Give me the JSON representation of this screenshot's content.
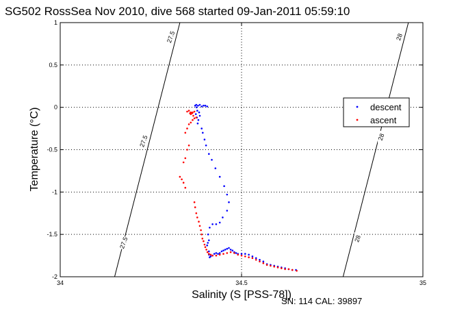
{
  "chart_data": {
    "type": "scatter",
    "title": "SG502 RossSea Nov 2010, dive 568 started 09-Jan-2011 05:59:10",
    "xlabel": "Salinity (S [PSS-78])",
    "ylabel": "Temperature (°C)",
    "xlim": [
      34,
      35
    ],
    "ylim": [
      -2,
      1
    ],
    "x_ticks": [
      "34",
      "34.5",
      "35"
    ],
    "y_ticks": [
      "-2",
      "-1.5",
      "-1",
      "-0.5",
      "0",
      "0.5",
      "1"
    ],
    "grid": "dotted at major ticks",
    "legend": {
      "placement": "right",
      "entries": [
        "descent",
        "ascent"
      ]
    },
    "series": [
      {
        "name": "descent",
        "color": "#0000ff",
        "points": [
          [
            34.372,
            0.02
          ],
          [
            34.375,
            0.03
          ],
          [
            34.38,
            0.02
          ],
          [
            34.385,
            0.03
          ],
          [
            34.39,
            0.01
          ],
          [
            34.395,
            0.02
          ],
          [
            34.4,
            0.02
          ],
          [
            34.405,
            0.01
          ],
          [
            34.376,
            0.0
          ],
          [
            34.378,
            -0.04
          ],
          [
            34.374,
            -0.08
          ],
          [
            34.377,
            -0.12
          ],
          [
            34.381,
            -0.15
          ],
          [
            34.379,
            -0.19
          ],
          [
            34.383,
            -0.06
          ],
          [
            34.385,
            -0.1
          ],
          [
            34.39,
            -0.25
          ],
          [
            34.393,
            -0.3
          ],
          [
            34.398,
            -0.38
          ],
          [
            34.402,
            -0.45
          ],
          [
            34.41,
            -0.55
          ],
          [
            34.418,
            -0.62
          ],
          [
            34.428,
            -0.72
          ],
          [
            34.44,
            -0.82
          ],
          [
            34.452,
            -0.93
          ],
          [
            34.46,
            -1.03
          ],
          [
            34.465,
            -1.12
          ],
          [
            34.46,
            -1.22
          ],
          [
            34.448,
            -1.3
          ],
          [
            34.44,
            -1.36
          ],
          [
            34.43,
            -1.38
          ],
          [
            34.42,
            -1.38
          ],
          [
            34.412,
            -1.42
          ],
          [
            34.408,
            -1.5
          ],
          [
            34.41,
            -1.57
          ],
          [
            34.407,
            -1.6
          ],
          [
            34.405,
            -1.63
          ],
          [
            34.41,
            -1.7
          ],
          [
            34.41,
            -1.74
          ],
          [
            34.412,
            -1.77
          ],
          [
            34.415,
            -1.76
          ],
          [
            34.42,
            -1.75
          ],
          [
            34.425,
            -1.73
          ],
          [
            34.43,
            -1.72
          ],
          [
            34.435,
            -1.73
          ],
          [
            34.44,
            -1.72
          ],
          [
            34.445,
            -1.7
          ],
          [
            34.45,
            -1.69
          ],
          [
            34.455,
            -1.68
          ],
          [
            34.46,
            -1.67
          ],
          [
            34.465,
            -1.66
          ],
          [
            34.47,
            -1.68
          ],
          [
            34.475,
            -1.69
          ],
          [
            34.48,
            -1.71
          ],
          [
            34.485,
            -1.72
          ],
          [
            34.49,
            -1.73
          ],
          [
            34.5,
            -1.73
          ],
          [
            34.51,
            -1.73
          ],
          [
            34.52,
            -1.74
          ],
          [
            34.53,
            -1.76
          ],
          [
            34.54,
            -1.78
          ],
          [
            34.55,
            -1.8
          ],
          [
            34.56,
            -1.82
          ],
          [
            34.57,
            -1.85
          ],
          [
            34.58,
            -1.86
          ],
          [
            34.59,
            -1.87
          ],
          [
            34.6,
            -1.88
          ],
          [
            34.61,
            -1.89
          ],
          [
            34.62,
            -1.9
          ],
          [
            34.63,
            -1.91
          ],
          [
            34.64,
            -1.92
          ],
          [
            34.65,
            -1.92
          ]
        ]
      },
      {
        "name": "ascent",
        "color": "#ff0000",
        "points": [
          [
            34.33,
            -0.82
          ],
          [
            34.335,
            -0.85
          ],
          [
            34.34,
            -0.89
          ],
          [
            34.345,
            -0.95
          ],
          [
            34.34,
            -0.65
          ],
          [
            34.345,
            -0.6
          ],
          [
            34.35,
            -0.5
          ],
          [
            34.355,
            -0.45
          ],
          [
            34.345,
            -0.3
          ],
          [
            34.35,
            -0.25
          ],
          [
            34.355,
            -0.2
          ],
          [
            34.36,
            -0.18
          ],
          [
            34.365,
            -0.15
          ],
          [
            34.37,
            -0.13
          ],
          [
            34.375,
            -0.12
          ],
          [
            34.36,
            -0.08
          ],
          [
            34.365,
            -0.06
          ],
          [
            34.37,
            -0.05
          ],
          [
            34.367,
            -0.1
          ],
          [
            34.35,
            -0.05
          ],
          [
            34.355,
            -0.04
          ],
          [
            34.36,
            -0.06
          ],
          [
            34.364,
            -0.07
          ],
          [
            34.358,
            -0.07
          ],
          [
            34.37,
            -1.12
          ],
          [
            34.372,
            -1.18
          ],
          [
            34.375,
            -1.25
          ],
          [
            34.378,
            -1.3
          ],
          [
            34.382,
            -1.35
          ],
          [
            34.385,
            -1.4
          ],
          [
            34.388,
            -1.45
          ],
          [
            34.39,
            -1.5
          ],
          [
            34.392,
            -1.55
          ],
          [
            34.395,
            -1.58
          ],
          [
            34.398,
            -1.62
          ],
          [
            34.4,
            -1.65
          ],
          [
            34.403,
            -1.68
          ],
          [
            34.406,
            -1.71
          ],
          [
            34.41,
            -1.73
          ],
          [
            34.415,
            -1.74
          ],
          [
            34.42,
            -1.75
          ],
          [
            34.43,
            -1.75
          ],
          [
            34.44,
            -1.74
          ],
          [
            34.45,
            -1.73
          ],
          [
            34.46,
            -1.72
          ],
          [
            34.47,
            -1.71
          ],
          [
            34.48,
            -1.72
          ],
          [
            34.49,
            -1.74
          ],
          [
            34.5,
            -1.75
          ],
          [
            34.51,
            -1.76
          ],
          [
            34.52,
            -1.77
          ],
          [
            34.53,
            -1.78
          ],
          [
            34.54,
            -1.8
          ],
          [
            34.55,
            -1.82
          ],
          [
            34.56,
            -1.84
          ],
          [
            34.57,
            -1.86
          ],
          [
            34.58,
            -1.87
          ],
          [
            34.59,
            -1.88
          ],
          [
            34.6,
            -1.89
          ],
          [
            34.61,
            -1.9
          ],
          [
            34.62,
            -1.91
          ],
          [
            34.63,
            -1.91
          ],
          [
            34.64,
            -1.92
          ],
          [
            34.652,
            -1.93
          ]
        ]
      }
    ],
    "contours": [
      {
        "label": "27.5",
        "points": [
          [
            34.15,
            -2
          ],
          [
            34.18,
            -1.5
          ],
          [
            34.21,
            -1.0
          ],
          [
            34.24,
            -0.5
          ],
          [
            34.27,
            0.0
          ],
          [
            34.3,
            0.5
          ],
          [
            34.33,
            1.0
          ]
        ]
      },
      {
        "label": "28",
        "points": [
          [
            34.78,
            -2
          ],
          [
            34.81,
            -1.5
          ],
          [
            34.84,
            -1.0
          ],
          [
            34.87,
            -0.5
          ],
          [
            34.9,
            0.0
          ],
          [
            34.93,
            0.5
          ],
          [
            34.96,
            1.0
          ]
        ]
      }
    ],
    "contour_label_positions": [
      {
        "label": "27.5",
        "at": [
          34.305,
          0.83
        ]
      },
      {
        "label": "27.5",
        "at": [
          34.23,
          -0.4
        ]
      },
      {
        "label": "27.5",
        "at": [
          34.175,
          -1.6
        ]
      },
      {
        "label": "28",
        "at": [
          34.935,
          0.83
        ]
      },
      {
        "label": "28",
        "at": [
          34.885,
          -0.35
        ]
      },
      {
        "label": "28",
        "at": [
          34.82,
          -1.55
        ]
      }
    ]
  },
  "footnote": "SN: 114  CAL: 39897"
}
